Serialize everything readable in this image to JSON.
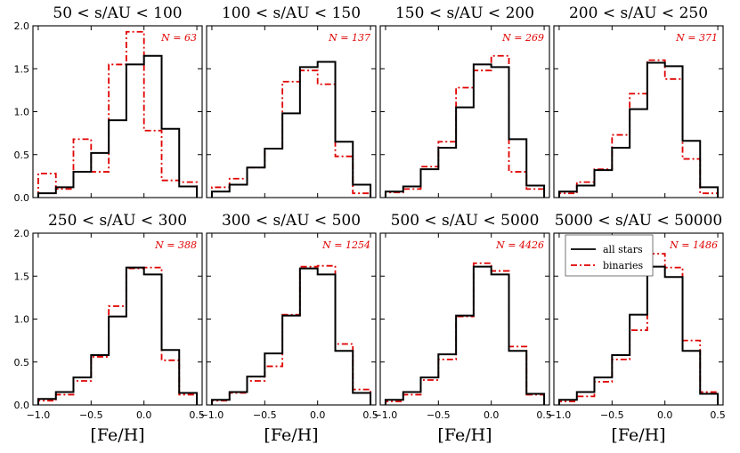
{
  "colors": {
    "all_stars": "#000000",
    "binaries": "#e00000"
  },
  "legend": {
    "all_stars": "all stars",
    "binaries": "binaries"
  },
  "chart_data": {
    "type": "step-histogram",
    "xlabel": "[Fe/H]",
    "xlim": [
      -1.05,
      0.55
    ],
    "ylim": [
      0,
      2.0
    ],
    "xticks": [
      -1.0,
      -0.5,
      0.0,
      0.5
    ],
    "xtick_labels": [
      "−1.0",
      "−0.5",
      "0.0",
      "0.5"
    ],
    "yticks": [
      0.0,
      0.5,
      1.0,
      1.5,
      2.0
    ],
    "ytick_labels": [
      "0.0",
      "0.5",
      "1.0",
      "1.5",
      "2.0"
    ],
    "bin_edges": [
      -1.0,
      -0.833,
      -0.667,
      -0.5,
      -0.333,
      -0.167,
      0.0,
      0.167,
      0.333,
      0.5
    ],
    "panels": [
      {
        "title": "50 < s/AU < 100",
        "n_label": "N = 63",
        "series": [
          {
            "name": "all stars",
            "values": [
              0.05,
              0.12,
              0.3,
              0.52,
              0.9,
              1.55,
              1.65,
              0.8,
              0.13
            ]
          },
          {
            "name": "binaries",
            "values": [
              0.28,
              0.1,
              0.68,
              0.3,
              1.55,
              1.93,
              0.78,
              0.2,
              0.18
            ]
          }
        ]
      },
      {
        "title": "100 < s/AU < 150",
        "n_label": "N = 137",
        "series": [
          {
            "name": "all stars",
            "values": [
              0.07,
              0.15,
              0.35,
              0.57,
              0.98,
              1.52,
              1.58,
              0.65,
              0.15
            ]
          },
          {
            "name": "binaries",
            "values": [
              0.12,
              0.22,
              0.35,
              0.57,
              1.35,
              1.48,
              1.32,
              0.48,
              0.05
            ]
          }
        ]
      },
      {
        "title": "150 < s/AU < 200",
        "n_label": "N = 269",
        "series": [
          {
            "name": "all stars",
            "values": [
              0.07,
              0.13,
              0.33,
              0.58,
              1.05,
              1.55,
              1.52,
              0.68,
              0.14
            ]
          },
          {
            "name": "binaries",
            "values": [
              0.06,
              0.1,
              0.36,
              0.65,
              1.28,
              1.48,
              1.65,
              0.3,
              0.1
            ]
          }
        ]
      },
      {
        "title": "200 < s/AU < 250",
        "n_label": "N = 371",
        "series": [
          {
            "name": "all stars",
            "values": [
              0.07,
              0.14,
              0.32,
              0.58,
              1.03,
              1.57,
              1.53,
              0.66,
              0.12
            ]
          },
          {
            "name": "binaries",
            "values": [
              0.05,
              0.18,
              0.33,
              0.73,
              1.21,
              1.6,
              1.38,
              0.45,
              0.05
            ]
          }
        ]
      },
      {
        "title": "250 < s/AU < 300",
        "n_label": "N = 388",
        "series": [
          {
            "name": "all stars",
            "values": [
              0.07,
              0.15,
              0.32,
              0.58,
              1.03,
              1.6,
              1.52,
              0.64,
              0.14
            ]
          },
          {
            "name": "binaries",
            "values": [
              0.05,
              0.12,
              0.28,
              0.56,
              1.15,
              1.59,
              1.6,
              0.52,
              0.12
            ]
          }
        ]
      },
      {
        "title": "300 < s/AU < 500",
        "n_label": "N = 1254",
        "series": [
          {
            "name": "all stars",
            "values": [
              0.06,
              0.15,
              0.33,
              0.6,
              1.04,
              1.59,
              1.52,
              0.63,
              0.14
            ]
          },
          {
            "name": "binaries",
            "values": [
              0.05,
              0.14,
              0.28,
              0.45,
              1.05,
              1.61,
              1.62,
              0.71,
              0.18
            ]
          }
        ]
      },
      {
        "title": "500 < s/AU < 5000",
        "n_label": "N = 4426",
        "series": [
          {
            "name": "all stars",
            "values": [
              0.06,
              0.15,
              0.32,
              0.59,
              1.04,
              1.61,
              1.52,
              0.63,
              0.13
            ]
          },
          {
            "name": "binaries",
            "values": [
              0.04,
              0.12,
              0.29,
              0.53,
              1.03,
              1.65,
              1.56,
              0.68,
              0.12
            ]
          }
        ]
      },
      {
        "title": "5000 < s/AU < 50000",
        "n_label": "N = 1486",
        "series": [
          {
            "name": "all stars",
            "values": [
              0.06,
              0.15,
              0.32,
              0.58,
              1.05,
              1.61,
              1.49,
              0.63,
              0.13
            ]
          },
          {
            "name": "binaries",
            "values": [
              0.04,
              0.1,
              0.27,
              0.53,
              0.87,
              1.76,
              1.6,
              0.75,
              0.15
            ]
          }
        ]
      }
    ]
  }
}
